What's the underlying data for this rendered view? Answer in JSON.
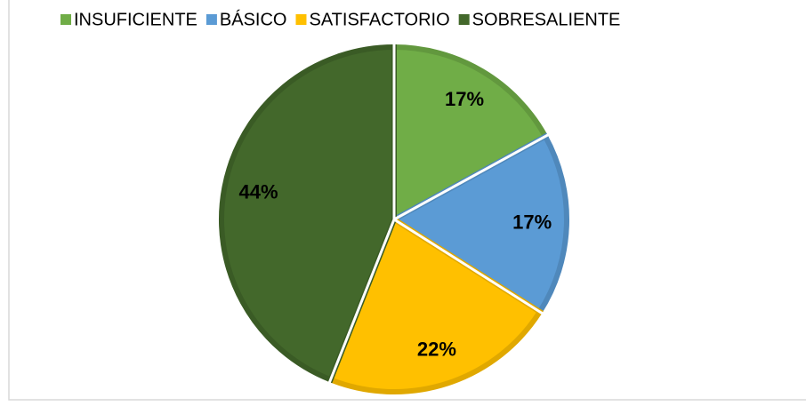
{
  "chart_data": {
    "type": "pie",
    "categories": [
      "INSUFICIENTE",
      "BÁSICO",
      "SATISFACTORIO",
      "SOBRESALIENTE"
    ],
    "values": [
      17,
      17,
      22,
      44
    ],
    "value_labels": [
      "17%",
      "17%",
      "22%",
      "44%"
    ],
    "colors": [
      "#70ad47",
      "#5b9bd5",
      "#ffc000",
      "#43682b"
    ],
    "legend": "top"
  }
}
